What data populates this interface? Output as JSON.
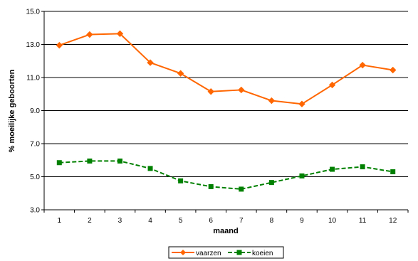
{
  "chart_data": {
    "type": "line",
    "xlabel": "maand",
    "ylabel": "% moeilijke geboorten",
    "categories": [
      "1",
      "2",
      "3",
      "4",
      "5",
      "6",
      "7",
      "8",
      "9",
      "10",
      "11",
      "12"
    ],
    "ylim": [
      3.0,
      15.0
    ],
    "yticks": [
      "3.0",
      "5.0",
      "7.0",
      "9.0",
      "11.0",
      "13.0",
      "15.0"
    ],
    "grid": true,
    "legend_position": "bottom",
    "series": [
      {
        "name": "vaarzen",
        "color": "#FF6600",
        "marker": "diamond",
        "line_style": "solid",
        "values": [
          12.95,
          13.6,
          13.65,
          11.9,
          11.25,
          10.15,
          10.25,
          9.6,
          9.4,
          10.55,
          11.75,
          11.45
        ]
      },
      {
        "name": "koeien",
        "color": "#008000",
        "marker": "square",
        "line_style": "dashed",
        "values": [
          5.85,
          5.95,
          5.95,
          5.5,
          4.75,
          4.4,
          4.25,
          4.65,
          5.05,
          5.45,
          5.6,
          5.3
        ]
      }
    ]
  }
}
